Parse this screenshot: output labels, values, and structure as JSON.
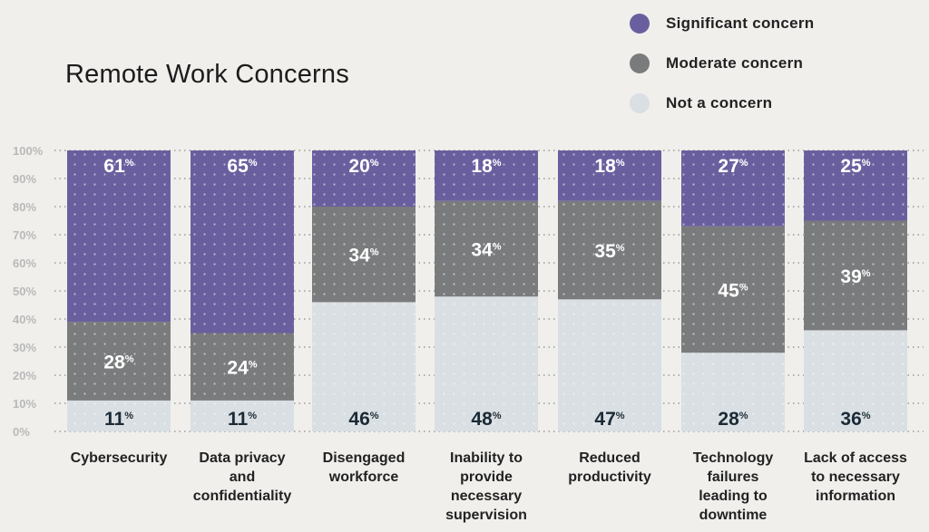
{
  "colors": {
    "significant": "#6a5f9e",
    "moderate": "#7a7b7c",
    "not": "#d9dfe2",
    "label_on_dark": "#ffffff",
    "label_on_light": "#1b2a36"
  },
  "chart_data": {
    "type": "bar",
    "stacked": true,
    "title": "Remote Work Concerns",
    "ylim": [
      0,
      100
    ],
    "yticks": [
      "0%",
      "10%",
      "20%",
      "30%",
      "40%",
      "50%",
      "60%",
      "70%",
      "80%",
      "90%",
      "100%"
    ],
    "grid": true,
    "legend_position": "top-right",
    "categories": [
      "Cybersecurity",
      "Data privacy and confidentiality",
      "Disengaged workforce",
      "Inability to provide necessary supervision",
      "Reduced productivity",
      "Technology failures leading to downtime",
      "Lack of access to necessary information"
    ],
    "category_lines": [
      [
        "Cybersecurity"
      ],
      [
        "Data privacy",
        "and",
        "confidentiality"
      ],
      [
        "Disengaged",
        "workforce"
      ],
      [
        "Inability to",
        "provide",
        "necessary",
        "supervision"
      ],
      [
        "Reduced",
        "productivity"
      ],
      [
        "Technology",
        "failures",
        "leading to",
        "downtime"
      ],
      [
        "Lack of access",
        "to necessary",
        "information"
      ]
    ],
    "series": [
      {
        "name": "Not a concern",
        "key": "not",
        "values": [
          11,
          11,
          46,
          48,
          47,
          28,
          36
        ]
      },
      {
        "name": "Moderate concern",
        "key": "moderate",
        "values": [
          28,
          24,
          34,
          34,
          35,
          45,
          39
        ]
      },
      {
        "name": "Significant concern",
        "key": "significant",
        "values": [
          61,
          65,
          20,
          18,
          18,
          27,
          25
        ]
      }
    ]
  },
  "legend": [
    {
      "label": "Significant concern",
      "key": "significant"
    },
    {
      "label": "Moderate concern",
      "key": "moderate"
    },
    {
      "label": "Not a concern",
      "key": "not"
    }
  ]
}
